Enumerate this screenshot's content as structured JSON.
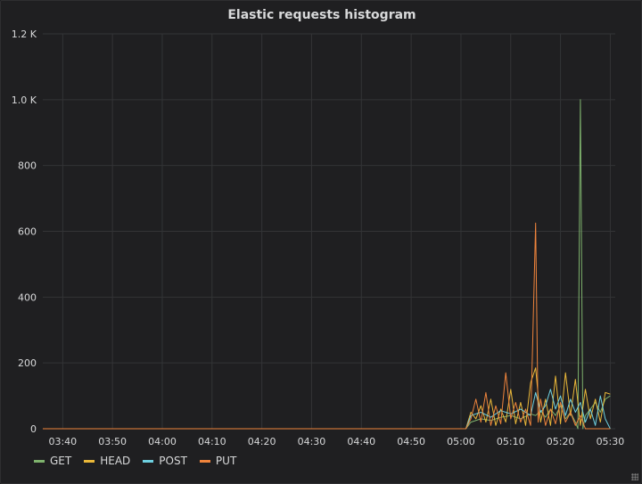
{
  "panel": {
    "title": "Elastic requests histogram"
  },
  "chart_data": {
    "type": "line",
    "title": "Elastic requests histogram",
    "xlabel": "",
    "ylabel": "",
    "x_ticks": [
      "03:40",
      "03:50",
      "04:00",
      "04:10",
      "04:20",
      "04:30",
      "04:40",
      "04:50",
      "05:00",
      "05:10",
      "05:20",
      "05:30"
    ],
    "xlim": [
      "03:36",
      "05:31"
    ],
    "ylim": [
      0,
      1200
    ],
    "y_ticks": [
      0,
      200,
      400,
      600,
      800,
      1000,
      1200
    ],
    "y_tick_labels": [
      "0",
      "200",
      "400",
      "600",
      "800",
      "1.0 K",
      "1.2 K"
    ],
    "grid": true,
    "legend_position": "bottom-left",
    "series": [
      {
        "name": "GET",
        "color": "#7eb26d",
        "points": [
          [
            "03:36",
            0
          ],
          [
            "05:01",
            0
          ],
          [
            "05:02",
            20
          ],
          [
            "05:04",
            30
          ],
          [
            "05:06",
            25
          ],
          [
            "05:08",
            35
          ],
          [
            "05:10",
            40
          ],
          [
            "05:12",
            30
          ],
          [
            "05:14",
            45
          ],
          [
            "05:15",
            40
          ],
          [
            "05:16",
            55
          ],
          [
            "05:17",
            35
          ],
          [
            "05:18",
            60
          ],
          [
            "05:19",
            40
          ],
          [
            "05:20",
            70
          ],
          [
            "05:21",
            30
          ],
          [
            "05:22",
            50
          ],
          [
            "05:23",
            20
          ],
          [
            "05:23.5",
            0
          ],
          [
            "05:24",
            1000
          ],
          [
            "05:24.5",
            0
          ],
          [
            "05:25",
            40
          ],
          [
            "05:26",
            60
          ],
          [
            "05:27",
            80
          ],
          [
            "05:28",
            50
          ],
          [
            "05:29",
            90
          ],
          [
            "05:30",
            100
          ]
        ]
      },
      {
        "name": "HEAD",
        "color": "#eab839",
        "points": [
          [
            "03:36",
            0
          ],
          [
            "05:01",
            0
          ],
          [
            "05:02",
            50
          ],
          [
            "05:03",
            30
          ],
          [
            "05:04",
            70
          ],
          [
            "05:05",
            20
          ],
          [
            "05:06",
            90
          ],
          [
            "05:07",
            10
          ],
          [
            "05:08",
            60
          ],
          [
            "05:09",
            20
          ],
          [
            "05:10",
            120
          ],
          [
            "05:11",
            15
          ],
          [
            "05:12",
            80
          ],
          [
            "05:13",
            10
          ],
          [
            "05:14",
            140
          ],
          [
            "05:15",
            185
          ],
          [
            "05:16",
            20
          ],
          [
            "05:17",
            90
          ],
          [
            "05:18",
            10
          ],
          [
            "05:19",
            160
          ],
          [
            "05:20",
            15
          ],
          [
            "05:21",
            170
          ],
          [
            "05:22",
            40
          ],
          [
            "05:23",
            150
          ],
          [
            "05:24",
            10
          ],
          [
            "05:25",
            120
          ],
          [
            "05:26",
            30
          ],
          [
            "05:27",
            90
          ],
          [
            "05:28",
            20
          ],
          [
            "05:29",
            110
          ],
          [
            "05:30",
            105
          ]
        ]
      },
      {
        "name": "POST",
        "color": "#6ed0e0",
        "points": [
          [
            "03:36",
            0
          ],
          [
            "05:01",
            0
          ],
          [
            "05:02",
            40
          ],
          [
            "05:04",
            50
          ],
          [
            "05:06",
            35
          ],
          [
            "05:08",
            55
          ],
          [
            "05:10",
            45
          ],
          [
            "05:12",
            60
          ],
          [
            "05:14",
            40
          ],
          [
            "05:15",
            110
          ],
          [
            "05:16",
            50
          ],
          [
            "05:17",
            70
          ],
          [
            "05:18",
            120
          ],
          [
            "05:19",
            60
          ],
          [
            "05:20",
            100
          ],
          [
            "05:21",
            40
          ],
          [
            "05:22",
            90
          ],
          [
            "05:23",
            50
          ],
          [
            "05:24",
            80
          ],
          [
            "05:25",
            20
          ],
          [
            "05:26",
            60
          ],
          [
            "05:27",
            10
          ],
          [
            "05:28",
            100
          ],
          [
            "05:29",
            30
          ],
          [
            "05:30",
            0
          ]
        ]
      },
      {
        "name": "PUT",
        "color": "#ef843c",
        "points": [
          [
            "03:36",
            0
          ],
          [
            "05:01",
            0
          ],
          [
            "05:02",
            30
          ],
          [
            "05:03",
            90
          ],
          [
            "05:04",
            20
          ],
          [
            "05:05",
            110
          ],
          [
            "05:06",
            10
          ],
          [
            "05:07",
            70
          ],
          [
            "05:08",
            15
          ],
          [
            "05:09",
            170
          ],
          [
            "05:10",
            30
          ],
          [
            "05:11",
            80
          ],
          [
            "05:12",
            20
          ],
          [
            "05:13",
            60
          ],
          [
            "05:14",
            10
          ],
          [
            "05:15",
            625
          ],
          [
            "05:15.5",
            20
          ],
          [
            "05:16",
            90
          ],
          [
            "05:17",
            10
          ],
          [
            "05:18",
            60
          ],
          [
            "05:19",
            15
          ],
          [
            "05:20",
            80
          ],
          [
            "05:21",
            20
          ],
          [
            "05:22",
            50
          ],
          [
            "05:23",
            10
          ],
          [
            "05:24",
            40
          ],
          [
            "05:25",
            0
          ],
          [
            "05:30",
            0
          ]
        ]
      }
    ]
  }
}
